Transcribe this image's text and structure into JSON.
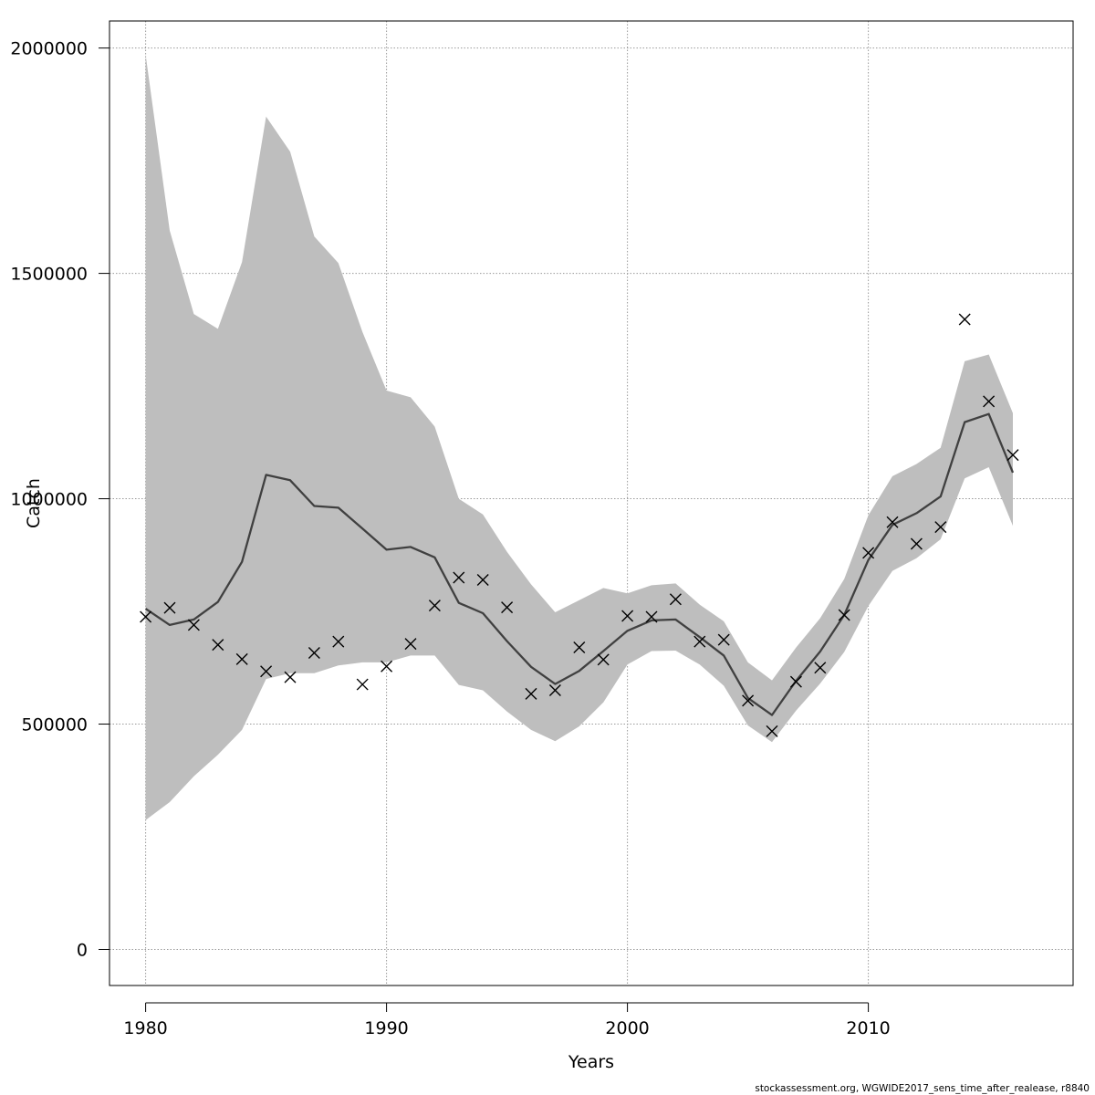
{
  "chart_data": {
    "type": "line",
    "xlabel": "Years",
    "ylabel": "Catch",
    "xlim": [
      1978.5,
      2018.5
    ],
    "ylim": [
      -80000,
      2060000
    ],
    "x_ticks": [
      1980,
      1990,
      2000,
      2010
    ],
    "y_ticks": [
      0,
      500000,
      1000000,
      1500000,
      2000000
    ],
    "grid": true,
    "colors": {
      "band": "#bebebe",
      "line": "#404040",
      "points": "#000000",
      "grid": "#9a9a9a"
    },
    "x": [
      1980,
      1981,
      1982,
      1983,
      1984,
      1985,
      1986,
      1987,
      1988,
      1989,
      1990,
      1991,
      1992,
      1993,
      1994,
      1995,
      1996,
      1997,
      1998,
      1999,
      2000,
      2001,
      2002,
      2003,
      2004,
      2005,
      2006,
      2007,
      2008,
      2009,
      2010,
      2011,
      2012,
      2013,
      2014,
      2015,
      2016
    ],
    "series": [
      {
        "kind": "band",
        "lower": [
          287000,
          327000,
          384000,
          432000,
          487000,
          600000,
          613000,
          613000,
          630000,
          637000,
          637000,
          652000,
          652000,
          587000,
          575000,
          528000,
          487000,
          462000,
          495000,
          548000,
          632000,
          662000,
          663000,
          632000,
          585000,
          497000,
          460000,
          530000,
          590000,
          660000,
          762000,
          840000,
          868000,
          910000,
          1045000,
          1070000,
          940000
        ],
        "upper": [
          1985000,
          1595000,
          1410000,
          1377000,
          1525000,
          1848000,
          1770000,
          1582000,
          1523000,
          1370000,
          1240000,
          1225000,
          1160000,
          1000000,
          965000,
          882000,
          810000,
          748000,
          775000,
          802000,
          790000,
          808000,
          812000,
          765000,
          728000,
          637000,
          597000,
          670000,
          735000,
          822000,
          963000,
          1050000,
          1077000,
          1113000,
          1305000,
          1320000,
          1190000
        ]
      },
      {
        "kind": "line",
        "values": [
          756000,
          720000,
          732000,
          771000,
          860000,
          1053000,
          1041000,
          984000,
          980000,
          934000,
          887000,
          893000,
          870000,
          769000,
          746000,
          684000,
          627000,
          589000,
          618000,
          662000,
          707000,
          730000,
          732000,
          693000,
          652000,
          558000,
          520000,
          596000,
          661000,
          742000,
          864000,
          942000,
          968000,
          1005000,
          1170000,
          1188000,
          1058000
        ]
      },
      {
        "kind": "points",
        "values": [
          738000,
          758000,
          720000,
          676000,
          644000,
          617000,
          604000,
          658000,
          683000,
          588000,
          628000,
          678000,
          763000,
          825000,
          820000,
          759000,
          567000,
          575000,
          670000,
          643000,
          740000,
          738000,
          777000,
          683000,
          687000,
          552000,
          484000,
          594000,
          625000,
          742000,
          880000,
          948000,
          900000,
          937000,
          1398000,
          1216000,
          1097000
        ]
      }
    ]
  },
  "footer": {
    "credit": "stockassessment.org, WGWIDE2017_sens_time_after_realease, r8840"
  }
}
